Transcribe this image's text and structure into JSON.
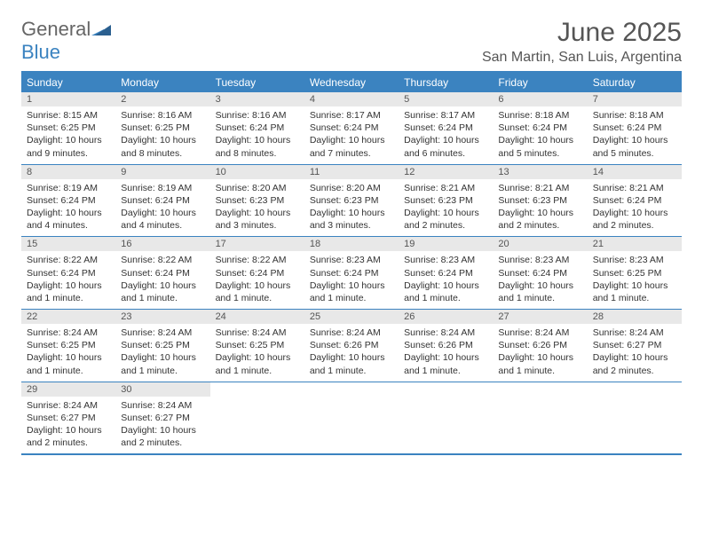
{
  "logo": {
    "part1": "General",
    "part2": "Blue"
  },
  "title": "June 2025",
  "location": "San Martin, San Luis, Argentina",
  "header_color": "#3b83c0",
  "day_names": [
    "Sunday",
    "Monday",
    "Tuesday",
    "Wednesday",
    "Thursday",
    "Friday",
    "Saturday"
  ],
  "weeks": [
    [
      {
        "n": "1",
        "sr": "Sunrise: 8:15 AM",
        "ss": "Sunset: 6:25 PM",
        "dl": "Daylight: 10 hours and 9 minutes."
      },
      {
        "n": "2",
        "sr": "Sunrise: 8:16 AM",
        "ss": "Sunset: 6:25 PM",
        "dl": "Daylight: 10 hours and 8 minutes."
      },
      {
        "n": "3",
        "sr": "Sunrise: 8:16 AM",
        "ss": "Sunset: 6:24 PM",
        "dl": "Daylight: 10 hours and 8 minutes."
      },
      {
        "n": "4",
        "sr": "Sunrise: 8:17 AM",
        "ss": "Sunset: 6:24 PM",
        "dl": "Daylight: 10 hours and 7 minutes."
      },
      {
        "n": "5",
        "sr": "Sunrise: 8:17 AM",
        "ss": "Sunset: 6:24 PM",
        "dl": "Daylight: 10 hours and 6 minutes."
      },
      {
        "n": "6",
        "sr": "Sunrise: 8:18 AM",
        "ss": "Sunset: 6:24 PM",
        "dl": "Daylight: 10 hours and 5 minutes."
      },
      {
        "n": "7",
        "sr": "Sunrise: 8:18 AM",
        "ss": "Sunset: 6:24 PM",
        "dl": "Daylight: 10 hours and 5 minutes."
      }
    ],
    [
      {
        "n": "8",
        "sr": "Sunrise: 8:19 AM",
        "ss": "Sunset: 6:24 PM",
        "dl": "Daylight: 10 hours and 4 minutes."
      },
      {
        "n": "9",
        "sr": "Sunrise: 8:19 AM",
        "ss": "Sunset: 6:24 PM",
        "dl": "Daylight: 10 hours and 4 minutes."
      },
      {
        "n": "10",
        "sr": "Sunrise: 8:20 AM",
        "ss": "Sunset: 6:23 PM",
        "dl": "Daylight: 10 hours and 3 minutes."
      },
      {
        "n": "11",
        "sr": "Sunrise: 8:20 AM",
        "ss": "Sunset: 6:23 PM",
        "dl": "Daylight: 10 hours and 3 minutes."
      },
      {
        "n": "12",
        "sr": "Sunrise: 8:21 AM",
        "ss": "Sunset: 6:23 PM",
        "dl": "Daylight: 10 hours and 2 minutes."
      },
      {
        "n": "13",
        "sr": "Sunrise: 8:21 AM",
        "ss": "Sunset: 6:23 PM",
        "dl": "Daylight: 10 hours and 2 minutes."
      },
      {
        "n": "14",
        "sr": "Sunrise: 8:21 AM",
        "ss": "Sunset: 6:24 PM",
        "dl": "Daylight: 10 hours and 2 minutes."
      }
    ],
    [
      {
        "n": "15",
        "sr": "Sunrise: 8:22 AM",
        "ss": "Sunset: 6:24 PM",
        "dl": "Daylight: 10 hours and 1 minute."
      },
      {
        "n": "16",
        "sr": "Sunrise: 8:22 AM",
        "ss": "Sunset: 6:24 PM",
        "dl": "Daylight: 10 hours and 1 minute."
      },
      {
        "n": "17",
        "sr": "Sunrise: 8:22 AM",
        "ss": "Sunset: 6:24 PM",
        "dl": "Daylight: 10 hours and 1 minute."
      },
      {
        "n": "18",
        "sr": "Sunrise: 8:23 AM",
        "ss": "Sunset: 6:24 PM",
        "dl": "Daylight: 10 hours and 1 minute."
      },
      {
        "n": "19",
        "sr": "Sunrise: 8:23 AM",
        "ss": "Sunset: 6:24 PM",
        "dl": "Daylight: 10 hours and 1 minute."
      },
      {
        "n": "20",
        "sr": "Sunrise: 8:23 AM",
        "ss": "Sunset: 6:24 PM",
        "dl": "Daylight: 10 hours and 1 minute."
      },
      {
        "n": "21",
        "sr": "Sunrise: 8:23 AM",
        "ss": "Sunset: 6:25 PM",
        "dl": "Daylight: 10 hours and 1 minute."
      }
    ],
    [
      {
        "n": "22",
        "sr": "Sunrise: 8:24 AM",
        "ss": "Sunset: 6:25 PM",
        "dl": "Daylight: 10 hours and 1 minute."
      },
      {
        "n": "23",
        "sr": "Sunrise: 8:24 AM",
        "ss": "Sunset: 6:25 PM",
        "dl": "Daylight: 10 hours and 1 minute."
      },
      {
        "n": "24",
        "sr": "Sunrise: 8:24 AM",
        "ss": "Sunset: 6:25 PM",
        "dl": "Daylight: 10 hours and 1 minute."
      },
      {
        "n": "25",
        "sr": "Sunrise: 8:24 AM",
        "ss": "Sunset: 6:26 PM",
        "dl": "Daylight: 10 hours and 1 minute."
      },
      {
        "n": "26",
        "sr": "Sunrise: 8:24 AM",
        "ss": "Sunset: 6:26 PM",
        "dl": "Daylight: 10 hours and 1 minute."
      },
      {
        "n": "27",
        "sr": "Sunrise: 8:24 AM",
        "ss": "Sunset: 6:26 PM",
        "dl": "Daylight: 10 hours and 1 minute."
      },
      {
        "n": "28",
        "sr": "Sunrise: 8:24 AM",
        "ss": "Sunset: 6:27 PM",
        "dl": "Daylight: 10 hours and 2 minutes."
      }
    ],
    [
      {
        "n": "29",
        "sr": "Sunrise: 8:24 AM",
        "ss": "Sunset: 6:27 PM",
        "dl": "Daylight: 10 hours and 2 minutes."
      },
      {
        "n": "30",
        "sr": "Sunrise: 8:24 AM",
        "ss": "Sunset: 6:27 PM",
        "dl": "Daylight: 10 hours and 2 minutes."
      },
      null,
      null,
      null,
      null,
      null
    ]
  ]
}
